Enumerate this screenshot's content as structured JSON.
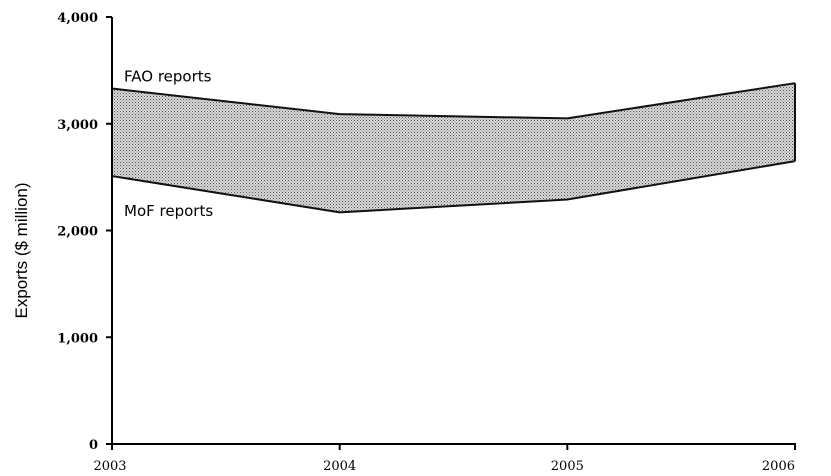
{
  "chart_data": {
    "type": "area",
    "x": [
      "2003",
      "2004",
      "2005",
      "2006"
    ],
    "series": [
      {
        "name": "FAO reports",
        "values": [
          3330,
          3090,
          3050,
          3380
        ]
      },
      {
        "name": "MoF reports",
        "values": [
          2510,
          2170,
          2290,
          2650
        ]
      }
    ],
    "ylabel": "Exports ($ million)",
    "xlabel": "",
    "ylim": [
      0,
      4000
    ],
    "yticks": [
      "0",
      "1,000",
      "2,000",
      "3,000",
      "4,000"
    ],
    "ytick_values": [
      0,
      1000,
      2000,
      3000,
      4000
    ],
    "grid": false,
    "fill_between": "hatched grey band between series"
  }
}
